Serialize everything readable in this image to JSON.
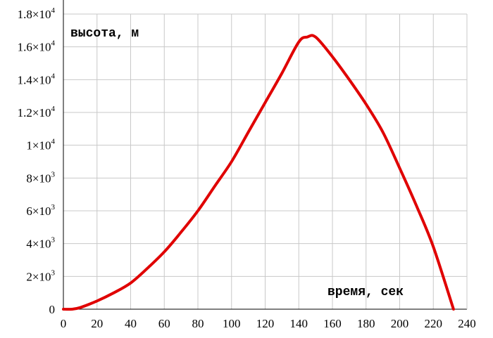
{
  "chart_data": {
    "type": "line",
    "ylabel": "высота, м",
    "xlabel": "время, сек",
    "xlim": [
      0,
      240
    ],
    "ylim": [
      0,
      18000
    ],
    "grid": true,
    "line_color": "#e00000",
    "x_ticks": [
      "0",
      "20",
      "40",
      "60",
      "80",
      "100",
      "120",
      "140",
      "160",
      "180",
      "200",
      "220",
      "240"
    ],
    "y_ticks": [
      {
        "value": 0,
        "mant": "0",
        "exp": ""
      },
      {
        "value": 2000,
        "mant": "2×10",
        "exp": "3"
      },
      {
        "value": 4000,
        "mant": "4×10",
        "exp": "3"
      },
      {
        "value": 6000,
        "mant": "6×10",
        "exp": "3"
      },
      {
        "value": 8000,
        "mant": "8×10",
        "exp": "3"
      },
      {
        "value": 10000,
        "mant": "1×10",
        "exp": "4"
      },
      {
        "value": 12000,
        "mant": "1.2×10",
        "exp": "4"
      },
      {
        "value": 14000,
        "mant": "1.4×10",
        "exp": "4"
      },
      {
        "value": 16000,
        "mant": "1.6×10",
        "exp": "4"
      },
      {
        "value": 18000,
        "mant": "1.8×10",
        "exp": "4"
      }
    ],
    "series": [
      {
        "x": [
          0,
          5,
          10,
          20,
          30,
          40,
          50,
          60,
          70,
          80,
          90,
          100,
          110,
          120,
          130,
          140,
          145,
          150,
          160,
          170,
          180,
          190,
          200,
          210,
          220,
          232
        ],
        "y": [
          0,
          0,
          100,
          500,
          1000,
          1600,
          2500,
          3500,
          4700,
          6000,
          7500,
          9000,
          10800,
          12600,
          14400,
          16300,
          16600,
          16600,
          15400,
          14000,
          12500,
          10800,
          8600,
          6300,
          3800,
          0
        ]
      }
    ]
  }
}
